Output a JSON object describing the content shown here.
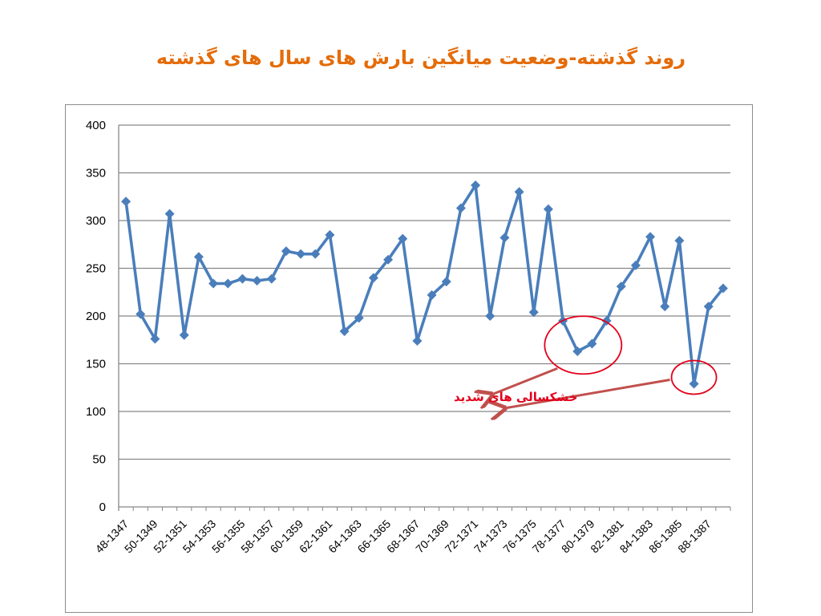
{
  "slide": {
    "title": "روند گذشته-وضعیت میانگین بارش های سال های گذشته"
  },
  "chart_data": {
    "type": "line",
    "title": "",
    "xlabel": "",
    "ylabel": "",
    "ylim": [
      0,
      400
    ],
    "yticks": [
      0,
      50,
      100,
      150,
      200,
      250,
      300,
      350,
      400
    ],
    "grid": true,
    "legend": "none",
    "series_color": "#4a7ebb",
    "x": [
      "48-1347",
      "49-1348",
      "50-1349",
      "51-1350",
      "52-1351",
      "53-1352",
      "54-1353",
      "55-1354",
      "56-1355",
      "57-1356",
      "58-1357",
      "59-1358",
      "60-1359",
      "61-1360",
      "62-1361",
      "63-1362",
      "64-1363",
      "65-1364",
      "66-1365",
      "67-1366",
      "68-1367",
      "69-1368",
      "70-1369",
      "71-1370",
      "72-1371",
      "73-1372",
      "74-1373",
      "75-1374",
      "76-1375",
      "77-1376",
      "78-1377",
      "79-1378",
      "80-1379",
      "81-1380",
      "82-1381",
      "83-1382",
      "84-1383",
      "85-1384",
      "86-1385",
      "87-1386",
      "88-1387",
      "89-1388"
    ],
    "xtick_labels": [
      "48-1347",
      "50-1349",
      "52-1351",
      "54-1353",
      "56-1355",
      "58-1357",
      "60-1359",
      "62-1361",
      "64-1363",
      "66-1365",
      "68-1367",
      "70-1369",
      "72-1371",
      "74-1373",
      "76-1375",
      "78-1377",
      "80-1379",
      "82-1381",
      "84-1383",
      "86-1385",
      "88-1387"
    ],
    "series": [
      {
        "values": [
          320,
          202,
          176,
          307,
          180,
          262,
          234,
          234,
          239,
          237,
          239,
          268,
          265,
          265,
          285,
          184,
          198,
          240,
          259,
          281,
          174,
          222,
          236,
          313,
          337,
          200,
          282,
          330,
          204,
          312,
          195,
          163,
          171,
          195,
          231,
          253,
          283,
          210,
          279,
          129,
          210,
          229
        ]
      }
    ],
    "annotations": [
      {
        "text": "خشکسالی های شدید",
        "color": "#e3001b",
        "circled": [
          "79-1378",
          "80-1379",
          "87-1386"
        ]
      }
    ]
  }
}
